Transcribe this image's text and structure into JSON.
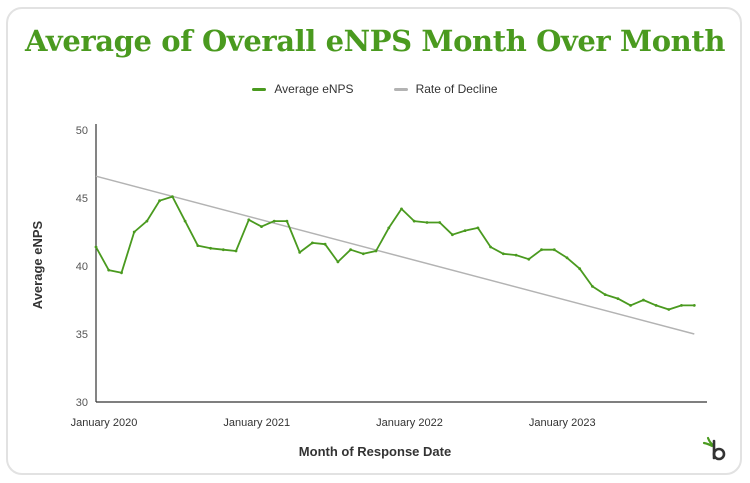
{
  "chart_data": {
    "type": "line",
    "title": "Average of Overall eNPS Month Over Month",
    "xlabel": "Month of Response Date",
    "ylabel": "Average eNPS",
    "ylim": [
      30,
      50
    ],
    "yticks": [
      30,
      35,
      40,
      45,
      50
    ],
    "xlim": [
      "2020-01",
      "2024-01"
    ],
    "xtick_labels": [
      "January 2020",
      "January 2021",
      "January 2022",
      "January 2023"
    ],
    "xtick_positions": [
      "2020-01",
      "2021-01",
      "2022-01",
      "2023-01"
    ],
    "grid": false,
    "legend_position": "top-center",
    "series": [
      {
        "name": "Average eNPS",
        "color": "#4a9a1f",
        "x": [
          "2020-01",
          "2020-02",
          "2020-03",
          "2020-04",
          "2020-05",
          "2020-06",
          "2020-07",
          "2020-08",
          "2020-09",
          "2020-10",
          "2020-11",
          "2020-12",
          "2021-01",
          "2021-02",
          "2021-03",
          "2021-04",
          "2021-05",
          "2021-06",
          "2021-07",
          "2021-08",
          "2021-09",
          "2021-10",
          "2021-11",
          "2021-12",
          "2022-01",
          "2022-02",
          "2022-03",
          "2022-04",
          "2022-05",
          "2022-06",
          "2022-07",
          "2022-08",
          "2022-09",
          "2022-10",
          "2022-11",
          "2022-12",
          "2023-01",
          "2023-02",
          "2023-03",
          "2023-04",
          "2023-05",
          "2023-06",
          "2023-07",
          "2023-08",
          "2023-09",
          "2023-10",
          "2023-11",
          "2023-12"
        ],
        "values": [
          41.4,
          39.7,
          39.5,
          42.5,
          43.3,
          44.8,
          45.1,
          43.3,
          41.5,
          41.3,
          41.2,
          41.1,
          43.4,
          42.9,
          43.3,
          43.3,
          41.0,
          41.7,
          41.6,
          40.3,
          41.2,
          40.9,
          41.1,
          42.8,
          44.2,
          43.3,
          43.2,
          43.2,
          42.3,
          42.6,
          42.8,
          41.4,
          40.9,
          40.8,
          40.5,
          41.2,
          41.2,
          40.6,
          39.8,
          38.5,
          37.9,
          37.6,
          37.1,
          37.5,
          37.1,
          36.8,
          37.1,
          37.1
        ]
      },
      {
        "name": "Rate of Decline",
        "color": "#b3b3b3",
        "x": [
          "2020-01",
          "2023-12"
        ],
        "values": [
          46.6,
          35.0
        ]
      }
    ]
  }
}
